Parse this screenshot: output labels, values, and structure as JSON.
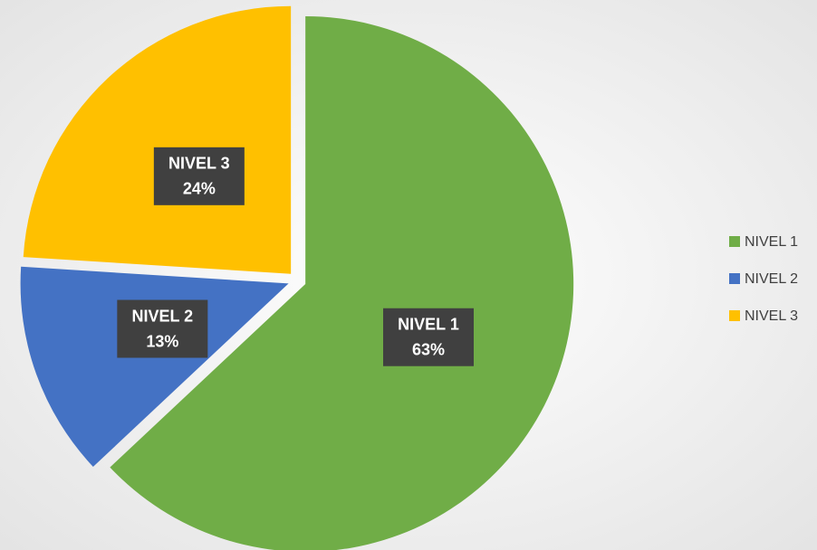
{
  "chart_data": {
    "type": "pie",
    "categories": [
      "NIVEL 1",
      "NIVEL 2",
      "NIVEL 3"
    ],
    "values": [
      63,
      13,
      24
    ],
    "value_labels": [
      "63%",
      "13%",
      "24%"
    ],
    "colors": [
      "#70ad47",
      "#4472c4",
      "#ffc000"
    ],
    "legend": "right"
  }
}
